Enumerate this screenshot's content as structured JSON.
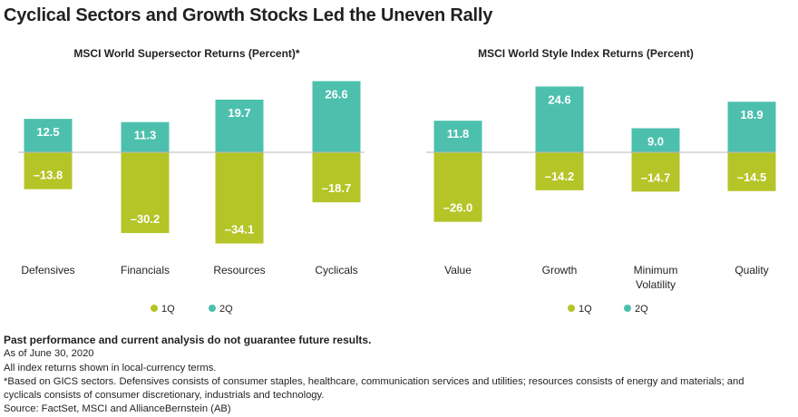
{
  "title": "Cyclical Sectors and Growth Stocks Led the Uneven Rally",
  "colors": {
    "q1": "#b5c427",
    "q2": "#4cc0ad",
    "zero_line": "#b9b9b9",
    "text": "#231f20"
  },
  "chart_data": [
    {
      "type": "bar",
      "title": "MSCI World Supersector Returns (Percent)*",
      "categories": [
        "Defensives",
        "Financials",
        "Resources",
        "Cyclicals"
      ],
      "series": [
        {
          "name": "1Q",
          "values": [
            -13.8,
            -30.2,
            -34.1,
            -18.7
          ],
          "labels": [
            "–13.8",
            "–30.2",
            "–34.1",
            "–18.7"
          ]
        },
        {
          "name": "2Q",
          "values": [
            12.5,
            11.3,
            19.7,
            26.6
          ],
          "labels": [
            "12.5",
            "11.3",
            "19.7",
            "26.6"
          ]
        }
      ],
      "legend_placement": "bottom-center",
      "grid": false
    },
    {
      "type": "bar",
      "title": "MSCI World Style Index Returns (Percent)",
      "categories": [
        "Value",
        "Growth",
        "Minimum Volatility",
        "Quality"
      ],
      "series": [
        {
          "name": "1Q",
          "values": [
            -26.0,
            -14.2,
            -14.7,
            -14.5
          ],
          "labels": [
            "–26.0",
            "–14.2",
            "–14.7",
            "–14.5"
          ]
        },
        {
          "name": "2Q",
          "values": [
            11.8,
            24.6,
            9.0,
            18.9
          ],
          "labels": [
            "11.8",
            "24.6",
            "9.0",
            "18.9"
          ]
        }
      ],
      "legend_placement": "bottom-center",
      "grid": false
    }
  ],
  "footnotes": {
    "disclaimer": "Past performance and current analysis do not guarantee future results.",
    "as_of": "As of June 30, 2020",
    "currency": "All index returns shown in local-currency terms.",
    "gics": "*Based on GICS sectors. Defensives consists of consumer staples, healthcare, communication services and utilities; resources consists of energy and materials; and",
    "gics_cont": "cyclicals consists of consumer discretionary, industrials and technology.",
    "source": "Source: FactSet, MSCI and AllianceBernstein (AB)"
  }
}
